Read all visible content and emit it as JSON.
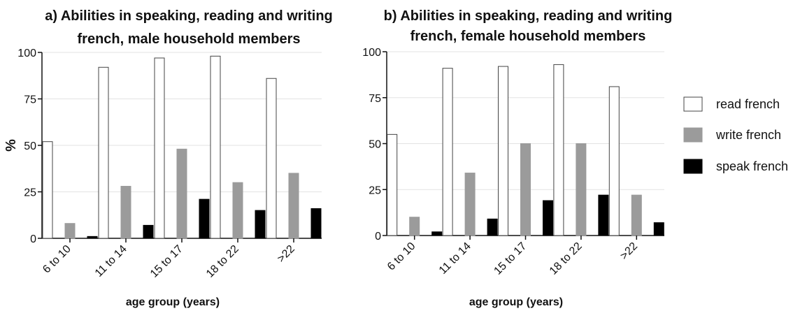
{
  "chart_data": [
    {
      "type": "bar",
      "title_lines": [
        "a) Abilities in speaking, reading and writing",
        "french, male household members"
      ],
      "xlabel": "age group (years)",
      "ylabel": "%",
      "ylim": [
        0,
        100
      ],
      "yticks": [
        "0",
        "25",
        "50",
        "75",
        "100"
      ],
      "categories": [
        "6 to 10",
        "11 to 14",
        "15 to 17",
        "18 to 22",
        ">22"
      ],
      "series": [
        {
          "name": "read french",
          "values": [
            52,
            92,
            97,
            98,
            86
          ]
        },
        {
          "name": "write french",
          "values": [
            8,
            28,
            48,
            30,
            35
          ]
        },
        {
          "name": "speak french",
          "values": [
            1,
            7,
            21,
            15,
            16
          ]
        }
      ],
      "grid": true
    },
    {
      "type": "bar",
      "title_lines": [
        "b) Abilities in speaking, reading and writing",
        "french, female household members"
      ],
      "xlabel": "age group (years)",
      "ylabel": "",
      "ylim": [
        0,
        100
      ],
      "yticks": [
        "0",
        "25",
        "50",
        "75",
        "100"
      ],
      "categories": [
        "6 to 10",
        "11 to 14",
        "15 to 17",
        "18 to 22",
        ">22"
      ],
      "series": [
        {
          "name": "read french",
          "values": [
            55,
            91,
            92,
            93,
            81
          ]
        },
        {
          "name": "write french",
          "values": [
            10,
            34,
            50,
            50,
            22
          ]
        },
        {
          "name": "speak french",
          "values": [
            2,
            9,
            19,
            22,
            7
          ]
        }
      ],
      "grid": true
    }
  ],
  "legend": {
    "placement": "right",
    "items": [
      {
        "label": "read french",
        "fill": "#ffffff",
        "stroke": "#444444"
      },
      {
        "label": "write french",
        "fill": "#9b9b9b",
        "stroke": "#9b9b9b"
      },
      {
        "label": "speak french",
        "fill": "#000000",
        "stroke": "#000000"
      }
    ]
  },
  "colors": {
    "read": "#ffffff",
    "write": "#9b9b9b",
    "speak": "#000000",
    "bar_outline": "#444444",
    "grid": "#e3e3e3",
    "axis": "#111111"
  }
}
